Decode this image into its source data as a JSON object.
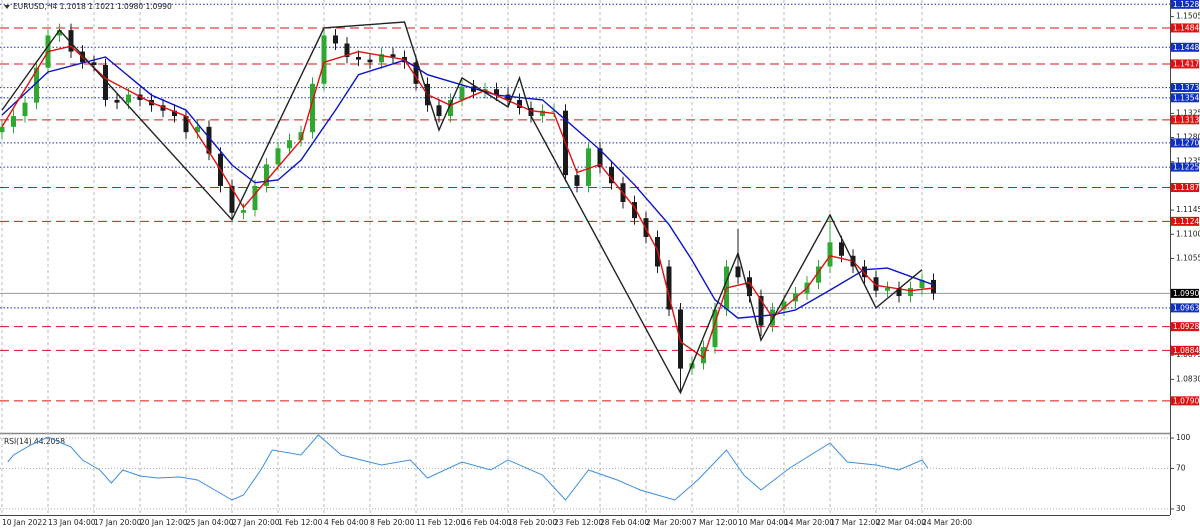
{
  "chart_data": [
    {
      "type": "candlestick",
      "title": "EURUSD,H4  1.1018 1.1021 1.0980 1.0990",
      "categories": [
        "10 Jan 2022",
        null,
        null,
        null,
        "13 Jan 04:00",
        null,
        null,
        null,
        "17 Jan 20:00",
        null,
        null,
        null,
        "20 Jan 12:00",
        null,
        null,
        null,
        "25 Jan 04:00",
        null,
        null,
        null,
        "27 Jan 20:00",
        null,
        null,
        null,
        "1 Feb 12:00",
        null,
        null,
        null,
        "4 Feb 04:00",
        null,
        null,
        null,
        "8 Feb 20:00",
        null,
        null,
        null,
        "11 Feb 12:00",
        null,
        null,
        null,
        "16 Feb 04:00",
        null,
        null,
        null,
        "18 Feb 20:00",
        null,
        null,
        null,
        "23 Feb 12:00",
        null,
        null,
        null,
        "28 Feb 04:00",
        null,
        null,
        null,
        "2 Mar 20:00",
        null,
        null,
        null,
        "7 Mar 12:00",
        null,
        null,
        null,
        "10 Mar 04:00",
        null,
        null,
        null,
        "14 Mar 20:00",
        null,
        null,
        null,
        "17 Mar 12:00",
        null,
        null,
        null,
        "22 Mar 04:00",
        null,
        null,
        null,
        "24 Mar 20:00",
        null
      ],
      "open": [
        1.129,
        1.13,
        1.132,
        1.1345,
        1.141,
        1.147,
        1.148,
        1.144,
        1.142,
        1.1415,
        1.135,
        1.1345,
        1.136,
        1.135,
        1.134,
        1.133,
        1.132,
        1.129,
        1.13,
        1.125,
        1.119,
        1.114,
        1.1145,
        1.119,
        1.123,
        1.126,
        1.1275,
        1.129,
        1.138,
        1.147,
        1.1455,
        1.143,
        1.1425,
        1.142,
        1.1435,
        1.143,
        1.142,
        1.138,
        1.134,
        1.132,
        1.135,
        1.1375,
        1.1365,
        1.137,
        1.136,
        1.135,
        1.1335,
        1.132,
        1.133,
        1.133,
        1.121,
        1.119,
        1.126,
        1.1225,
        1.1195,
        1.116,
        1.113,
        1.1095,
        1.104,
        1.096,
        1.085,
        1.086,
        1.089,
        1.096,
        1.104,
        1.102,
        1.0985,
        1.093,
        1.096,
        1.0975,
        1.099,
        1.101,
        1.104,
        1.1085,
        1.106,
        1.104,
        1.102,
        1.0995,
        1.1,
        1.0985,
        1.1,
        1.1015
      ],
      "high": [
        1.1312,
        1.1332,
        1.1357,
        1.1422,
        1.1482,
        1.1492,
        1.1492,
        1.1452,
        1.1432,
        1.1427,
        1.1362,
        1.1372,
        1.1372,
        1.1362,
        1.1352,
        1.1342,
        1.1332,
        1.1312,
        1.1312,
        1.1262,
        1.1202,
        1.1157,
        1.1202,
        1.1242,
        1.1272,
        1.1287,
        1.1302,
        1.1392,
        1.1482,
        1.1482,
        1.1467,
        1.1442,
        1.1437,
        1.1447,
        1.1447,
        1.1442,
        1.1432,
        1.1392,
        1.1352,
        1.1362,
        1.1387,
        1.1387,
        1.1382,
        1.1382,
        1.1372,
        1.1362,
        1.1347,
        1.1342,
        1.1342,
        1.1342,
        1.1222,
        1.1272,
        1.1272,
        1.1237,
        1.1207,
        1.1172,
        1.1142,
        1.1107,
        1.1052,
        1.0972,
        1.0872,
        1.0902,
        1.0972,
        1.1052,
        1.111,
        1.1032,
        1.0997,
        1.0972,
        1.0987,
        1.1002,
        1.1022,
        1.1052,
        1.113,
        1.1097,
        1.1072,
        1.1052,
        1.1032,
        1.1012,
        1.1012,
        1.1012,
        1.1027,
        1.1027
      ],
      "low": [
        1.1278,
        1.1288,
        1.1308,
        1.1333,
        1.1398,
        1.1458,
        1.1428,
        1.1408,
        1.1403,
        1.1338,
        1.1333,
        1.1333,
        1.1338,
        1.1328,
        1.1318,
        1.1308,
        1.1278,
        1.1278,
        1.1238,
        1.1178,
        1.1128,
        1.1128,
        1.1133,
        1.1178,
        1.1218,
        1.1248,
        1.1263,
        1.1278,
        1.1368,
        1.1443,
        1.1418,
        1.1413,
        1.1408,
        1.1408,
        1.1418,
        1.1408,
        1.1368,
        1.1328,
        1.1308,
        1.1308,
        1.1338,
        1.1353,
        1.1353,
        1.1348,
        1.1338,
        1.1323,
        1.1308,
        1.1308,
        1.1318,
        1.1198,
        1.1178,
        1.1178,
        1.1213,
        1.1183,
        1.1148,
        1.1118,
        1.1083,
        1.1028,
        1.0948,
        1.0808,
        1.0838,
        1.0848,
        1.0878,
        1.0948,
        1.1008,
        1.0973,
        1.091,
        1.0918,
        1.0948,
        1.0963,
        1.0978,
        1.0998,
        1.1028,
        1.1048,
        1.1028,
        1.1008,
        1.0983,
        1.0983,
        1.0973,
        1.0973,
        1.0988,
        1.0978
      ],
      "close": [
        1.13,
        1.132,
        1.1345,
        1.141,
        1.147,
        1.148,
        1.144,
        1.142,
        1.1415,
        1.135,
        1.1345,
        1.136,
        1.135,
        1.134,
        1.133,
        1.132,
        1.129,
        1.13,
        1.125,
        1.119,
        1.114,
        1.1145,
        1.119,
        1.123,
        1.126,
        1.1275,
        1.129,
        1.138,
        1.147,
        1.1455,
        1.143,
        1.1425,
        1.142,
        1.1435,
        1.143,
        1.142,
        1.138,
        1.134,
        1.132,
        1.135,
        1.1375,
        1.1365,
        1.137,
        1.136,
        1.135,
        1.1335,
        1.132,
        1.133,
        1.133,
        1.121,
        1.119,
        1.126,
        1.1225,
        1.1195,
        1.116,
        1.113,
        1.1095,
        1.104,
        1.096,
        1.085,
        1.086,
        1.089,
        1.096,
        1.104,
        1.102,
        1.0985,
        1.093,
        1.096,
        1.0975,
        1.099,
        1.101,
        1.104,
        1.1085,
        1.106,
        1.104,
        1.102,
        1.0995,
        1.1,
        1.0985,
        1.1,
        1.1015,
        1.099
      ],
      "up_color": "#2fa82f",
      "down_color": "#1a1a1a",
      "overlays": [
        {
          "color": "#0a14c8",
          "x": [
            0,
            4,
            9,
            13,
            16,
            20,
            22,
            24,
            26,
            29,
            31,
            35,
            37,
            40,
            43,
            47,
            49,
            52,
            55,
            58,
            60,
            62,
            64,
            67,
            69,
            72,
            75,
            77,
            81
          ],
          "values": [
            1.1322,
            1.1402,
            1.143,
            1.1359,
            1.1331,
            1.1229,
            1.1196,
            1.1201,
            1.1238,
            1.1331,
            1.1397,
            1.1424,
            1.1397,
            1.1378,
            1.1359,
            1.135,
            1.1313,
            1.1257,
            1.1192,
            1.1118,
            1.1052,
            1.0978,
            1.0944,
            1.095,
            1.0959,
            1.0996,
            1.1034,
            1.1037,
            1.1006
          ]
        },
        {
          "color": "#e01010",
          "x": [
            0,
            4,
            6,
            9,
            13,
            16,
            19,
            21,
            23,
            26,
            28,
            31,
            35,
            37,
            39,
            42,
            46,
            48,
            50,
            52,
            55,
            57,
            59,
            61,
            63,
            65,
            67,
            70,
            72,
            74,
            76,
            79,
            81
          ],
          "values": [
            1.13,
            1.144,
            1.145,
            1.139,
            1.1345,
            1.132,
            1.122,
            1.115,
            1.12,
            1.1275,
            1.142,
            1.144,
            1.1425,
            1.136,
            1.134,
            1.1368,
            1.133,
            1.1325,
            1.1215,
            1.123,
            1.115,
            1.107,
            1.09,
            1.087,
            1.1,
            1.101,
            1.0945,
            1.1,
            1.106,
            1.105,
            1.1005,
            1.0995,
            1.1
          ]
        },
        {
          "color": "#222222",
          "x": [
            0,
            5,
            20,
            28,
            35,
            38,
            40,
            44,
            45,
            46,
            59,
            64,
            66,
            72,
            76,
            80
          ],
          "values": [
            1.1331,
            1.148,
            1.1127,
            1.1484,
            1.1495,
            1.1294,
            1.1391,
            1.1337,
            1.1391,
            1.132,
            1.0805,
            1.1065,
            1.0903,
            1.1136,
            1.0963,
            1.1034
          ]
        }
      ],
      "levels": [
        {
          "value": 1.1528,
          "label": "1.1528",
          "color": "#1030c0",
          "style": "dotted"
        },
        {
          "value": 1.1484,
          "label": "1.1484",
          "color": "#e01010",
          "style": "dashed"
        },
        {
          "value": 1.1448,
          "label": "1.1448",
          "color": "#1030c0",
          "style": "dotted"
        },
        {
          "value": 1.1417,
          "label": "1.1417",
          "color": "#e01010",
          "style": "dashed"
        },
        {
          "value": 1.1373,
          "label": "1.1373",
          "color": "#1030c0",
          "style": "dotted"
        },
        {
          "value": 1.1354,
          "label": "1.1354",
          "color": "#1030c0",
          "style": "dotted"
        },
        {
          "value": 1.1313,
          "label": "1.1313",
          "color": "#e01010",
          "style": "dashed"
        },
        {
          "value": 1.127,
          "label": "1.1270",
          "color": "#1030c0",
          "style": "dotted"
        },
        {
          "value": 1.1225,
          "label": "1.1225",
          "color": "#1030c0",
          "style": "dotted"
        },
        {
          "value": 1.1187,
          "label": "1.1187",
          "color": "#e01010",
          "style": "dashed"
        },
        {
          "value": 1.1124,
          "label": "1.1124",
          "color": "#e01010",
          "style": "dashed"
        },
        {
          "value": 1.0963,
          "label": "1.0963",
          "color": "#1030c0",
          "style": "dotted"
        },
        {
          "value": 1.0928,
          "label": "1.0928",
          "color": "#e01010",
          "style": "dashed"
        },
        {
          "value": 1.0884,
          "label": "1.0884",
          "color": "#e01010",
          "style": "dashed"
        },
        {
          "value": 1.079,
          "label": "1.0790",
          "color": "#e01010",
          "style": "dashed"
        }
      ],
      "last_price": {
        "value": 1.099,
        "label": "1.0990",
        "color": "#000000"
      },
      "ylim": [
        1.0732,
        1.1536
      ],
      "yticks": [
        1.1505,
        1.1325,
        {
          "value": 1.128,
          "label": "1.1280"
        },
        1.1235,
        1.1145,
        {
          "value": 1.11,
          "label": "1.1100"
        },
        1.1055,
        1.0875,
        {
          "value": 1.083,
          "label": "1.0830"
        }
      ]
    },
    {
      "type": "line",
      "title": "RSI(14) 44.2058",
      "series": [
        {
          "color": "#3b8fe0",
          "x": [
            0.5,
            1,
            2.5,
            4,
            6,
            7,
            8.5,
            9.5,
            10.5,
            12,
            13.5,
            15.5,
            17,
            18.5,
            20,
            21,
            22.5,
            23.5,
            26,
            27.5,
            29.5,
            33,
            35.5,
            37,
            40,
            42.5,
            44,
            47,
            49,
            51,
            53.5,
            55.5,
            57,
            58.5,
            60.5,
            63,
            64.5,
            66,
            68.5,
            72,
            73.5,
            76,
            78,
            80,
            80.5
          ],
          "values": [
            76.3,
            83.3,
            93.1,
            101,
            91.2,
            78.3,
            68.4,
            55.6,
            68.4,
            62.5,
            60.5,
            61.5,
            58.6,
            48.7,
            38.8,
            43.8,
            68.4,
            88.2,
            83.3,
            103,
            83.3,
            73.4,
            78.3,
            60.5,
            76.3,
            68.4,
            78.3,
            63.5,
            38.8,
            68.4,
            58.6,
            48.7,
            43.8,
            38.8,
            58.6,
            88.2,
            63.5,
            48.7,
            70.4,
            95.1,
            76.3,
            73.4,
            68.4,
            78.3,
            70.4
          ]
        }
      ],
      "ylim": [
        24,
        104
      ],
      "yticks": [
        100,
        70,
        30
      ],
      "grid": true
    }
  ]
}
